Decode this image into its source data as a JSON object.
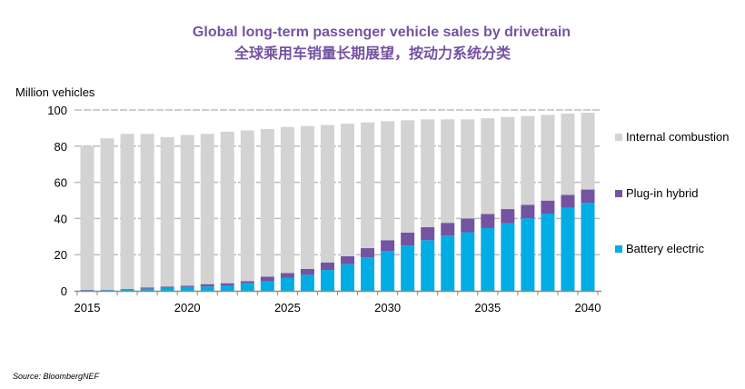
{
  "title": "Global long-term passenger vehicle sales by drivetrain",
  "subtitle": "全球乘用车销量长期展望，按动力系统分类",
  "source": "Source: BloombergNEF",
  "chart_data": {
    "type": "bar",
    "stacked": true,
    "title": "Global long-term passenger vehicle sales by drivetrain",
    "subtitle": "全球乘用车销量长期展望，按动力系统分类",
    "ylabel": "Million vehicles",
    "xlabel": "",
    "ylim": [
      0,
      100
    ],
    "yticks": [
      0,
      20,
      40,
      60,
      80,
      100
    ],
    "xtick_labels": [
      "2015",
      "2020",
      "2025",
      "2030",
      "2035",
      "2040"
    ],
    "grid": "horizontal dashed",
    "legend_position": "right",
    "categories": [
      2015,
      2016,
      2017,
      2018,
      2019,
      2020,
      2021,
      2022,
      2023,
      2024,
      2025,
      2026,
      2027,
      2028,
      2029,
      2030,
      2031,
      2032,
      2033,
      2034,
      2035,
      2036,
      2037,
      2038,
      2039,
      2040
    ],
    "series": [
      {
        "name": "Battery electric",
        "color": "#00ade4",
        "values": [
          0.3,
          0.4,
          0.6,
          1.2,
          1.7,
          2.2,
          2.4,
          3.0,
          4.2,
          5.2,
          7.3,
          8.9,
          11.5,
          14.7,
          18.5,
          22.1,
          25.0,
          28.0,
          30.5,
          32.4,
          34.7,
          37.3,
          40.1,
          42.7,
          45.9,
          48.7
        ]
      },
      {
        "name": "Plug-in hybrid",
        "color": "#7453a2",
        "values": [
          0.2,
          0.2,
          0.4,
          0.7,
          0.7,
          0.7,
          1.3,
          1.2,
          1.2,
          2.7,
          2.5,
          3.2,
          4.2,
          4.5,
          5.1,
          5.9,
          7.2,
          7.2,
          7.1,
          7.6,
          7.8,
          7.9,
          7.5,
          7.2,
          7.2,
          7.3
        ]
      },
      {
        "name": "Internal combustion",
        "color": "#d3d3d3",
        "values": [
          79.5,
          83.7,
          85.8,
          84.9,
          82.6,
          83.3,
          83.1,
          83.8,
          83.3,
          81.5,
          80.8,
          79.0,
          76.0,
          73.2,
          69.5,
          65.8,
          62.1,
          59.6,
          57.2,
          54.8,
          52.9,
          50.9,
          49.0,
          47.4,
          44.9,
          42.5
        ]
      }
    ]
  }
}
